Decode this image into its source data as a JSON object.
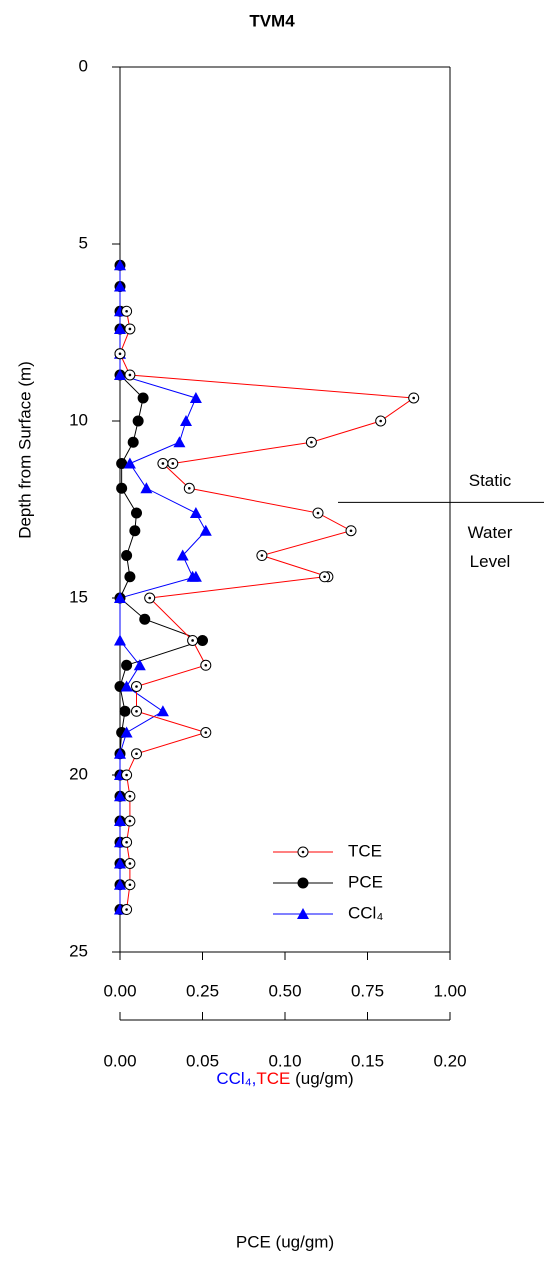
{
  "chart_data": {
    "type": "depth-profile",
    "title": "TVM4",
    "ylabel": "Depth from Surface (m)",
    "xlabel_parts": [
      "CCl₄,",
      "TCE",
      "(ug/gm)"
    ],
    "x2label": "PCE  (ug/gm)",
    "ylim": [
      0,
      25
    ],
    "yticks": [
      0,
      5,
      10,
      15,
      20,
      25
    ],
    "xlim": [
      0,
      1
    ],
    "xticks": [
      {
        "value": 0,
        "label": "0.00"
      },
      {
        "value": 0.25,
        "label": "0.25"
      },
      {
        "value": 0.5,
        "label": "0.50"
      },
      {
        "value": 0.75,
        "label": "0.75"
      },
      {
        "value": 1,
        "label": "1.00"
      }
    ],
    "x2lim": [
      0,
      0.2
    ],
    "x2ticks": [
      {
        "value": 0,
        "label": "0.00"
      },
      {
        "value": 0.05,
        "label": "0.05"
      },
      {
        "value": 0.1,
        "label": "0.10"
      },
      {
        "value": 0.15,
        "label": "0.15"
      },
      {
        "value": 0.2,
        "label": "0.20"
      }
    ],
    "series": [
      {
        "name": "TCE",
        "color": "#ff0000",
        "marker": "circle-open",
        "axis": "x",
        "depth": [
          6.9,
          7.4,
          8.1,
          8.7,
          9.35,
          10.0,
          10.6,
          11.2,
          11.2,
          11.9,
          12.6,
          13.1,
          13.8,
          14.4,
          14.4,
          15.0,
          16.2,
          16.9,
          17.5,
          18.2,
          18.8,
          19.4,
          20.0,
          20.6,
          21.3,
          21.9,
          22.5,
          23.1,
          23.8
        ],
        "values": [
          0.02,
          0.03,
          0.0,
          0.03,
          0.89,
          0.79,
          0.58,
          0.16,
          0.13,
          0.21,
          0.6,
          0.7,
          0.43,
          0.63,
          0.62,
          0.09,
          0.22,
          0.26,
          0.05,
          0.05,
          0.26,
          0.05,
          0.02,
          0.03,
          0.03,
          0.02,
          0.03,
          0.03,
          0.02
        ]
      },
      {
        "name": "PCE",
        "color": "#000000",
        "marker": "circle-filled",
        "axis": "x2",
        "depth": [
          5.6,
          6.2,
          6.9,
          7.4,
          8.1,
          8.7,
          9.35,
          10.0,
          10.6,
          11.2,
          11.9,
          12.6,
          13.1,
          13.8,
          14.4,
          15.0,
          15.6,
          16.2,
          16.9,
          17.5,
          18.2,
          18.8,
          19.4,
          20.0,
          20.6,
          21.3,
          21.9,
          22.5,
          23.1,
          23.8
        ],
        "values": [
          0,
          0,
          0,
          0,
          0,
          0,
          0.014,
          0.011,
          0.008,
          0.001,
          0.001,
          0.01,
          0.009,
          0.004,
          0.006,
          0,
          0.015,
          0.05,
          0.004,
          0,
          0.003,
          0.001,
          0,
          0,
          0,
          0,
          0,
          0,
          0,
          0
        ]
      },
      {
        "name": "CCl₄",
        "color": "#0000ff",
        "marker": "triangle",
        "axis": "x",
        "depth": [
          5.6,
          6.2,
          6.9,
          7.4,
          8.1,
          8.7,
          9.35,
          10.0,
          10.6,
          11.2,
          11.9,
          12.6,
          13.1,
          13.8,
          14.4,
          14.4,
          15.0,
          16.2,
          16.9,
          17.5,
          18.2,
          18.8,
          19.4,
          20.0,
          20.6,
          21.3,
          21.9,
          22.5,
          23.1,
          23.8
        ],
        "values": [
          0,
          0,
          0,
          0,
          0,
          0,
          0.23,
          0.2,
          0.18,
          0.03,
          0.08,
          0.23,
          0.26,
          0.19,
          0.22,
          0.23,
          0,
          0,
          0.06,
          0.02,
          0.13,
          0.02,
          0,
          0,
          0,
          0,
          0,
          0,
          0,
          0
        ]
      }
    ],
    "water_level": {
      "depth": 12.3,
      "labels": [
        "Static",
        "Water",
        "Level"
      ]
    }
  }
}
